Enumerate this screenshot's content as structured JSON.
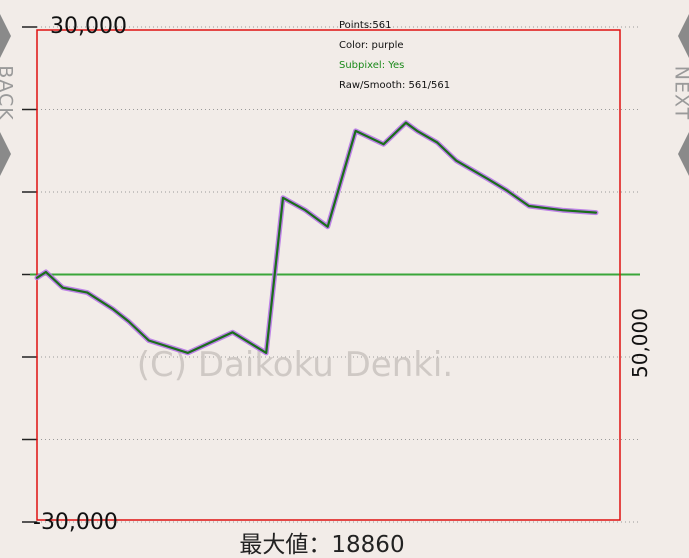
{
  "nav": {
    "back_label": "BACK",
    "next_label": "NEXT"
  },
  "overlay": {
    "points": "Points:561",
    "color": "Color: purple",
    "subpixel": "Subpixel: Yes",
    "raw_smooth": "Raw/Smooth: 561/561",
    "subpixel_color": "#1a8a1a"
  },
  "colors": {
    "background": "#f2ece8",
    "frame": "#e01010",
    "line": "#1a6e1a",
    "glow": "#b46ee6",
    "zero_line": "#3aa63a",
    "grid": "#9a9a9a",
    "watermark": "#cfc9c5"
  },
  "chart_data": {
    "type": "line",
    "y_top_label": "30,000",
    "y_bottom_label": "-30,000",
    "x_right_label": "50,000",
    "footer": "最大値：18860",
    "watermark": "(C) Daikoku Denki.",
    "ylim": [
      -30000,
      30000
    ],
    "xlim": [
      0,
      50000
    ],
    "grid": true,
    "y_grid_values": [
      30000,
      20000,
      10000,
      0,
      -10000,
      -20000,
      -30000
    ],
    "series": [
      {
        "x": [
          0,
          800,
          2300,
          4500,
          6800,
          8200,
          10000,
          13500,
          17500,
          20500,
          22000,
          24000,
          26000,
          28500,
          31000,
          33000,
          34000,
          35800,
          37500,
          40300,
          42000,
          44000,
          47000,
          50000
        ],
        "y": [
          -400,
          300,
          -1600,
          -2200,
          -4200,
          -5700,
          -8000,
          -9500,
          -7000,
          -9500,
          9300,
          7800,
          5800,
          17400,
          15800,
          18400,
          17400,
          16000,
          13800,
          11600,
          10200,
          8300,
          7800,
          7500
        ]
      }
    ]
  }
}
